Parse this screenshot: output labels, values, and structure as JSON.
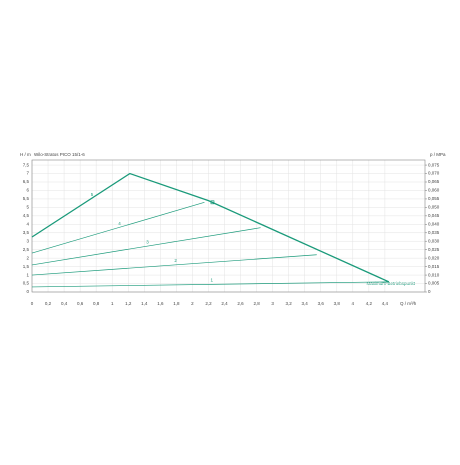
{
  "chart_data": {
    "type": "line",
    "title": "Wilo-Stratos PICO 15/1-6",
    "y_label": "H / m",
    "y2_label": "p / MPa",
    "x_label": "Q / m³/h",
    "legend_note": "Maximum-Betriebspunkt",
    "xlim": [
      0,
      4.9
    ],
    "ylim": [
      0,
      7.8
    ],
    "y2lim": [
      0,
      0.078
    ],
    "grid": true,
    "xticks": [
      0,
      {
        "value": 0.2,
        "label": "0,2"
      },
      {
        "value": 0.4,
        "label": "0,4"
      },
      {
        "value": 0.6,
        "label": "0,6"
      },
      {
        "value": 0.8,
        "label": "0,8"
      },
      1,
      {
        "value": 1.2,
        "label": "1,2"
      },
      {
        "value": 1.4,
        "label": "1,4"
      },
      {
        "value": 1.6,
        "label": "1,6"
      },
      {
        "value": 1.8,
        "label": "1,8"
      },
      2,
      {
        "value": 2.2,
        "label": "2,2"
      },
      {
        "value": 2.4,
        "label": "2,4"
      },
      {
        "value": 2.6,
        "label": "2,6"
      },
      {
        "value": 2.8,
        "label": "2,8"
      },
      3,
      {
        "value": 3.2,
        "label": "3,2"
      },
      {
        "value": 3.4,
        "label": "3,4"
      },
      {
        "value": 3.6,
        "label": "3,6"
      },
      {
        "value": 3.8,
        "label": "3,8"
      },
      4,
      {
        "value": 4.2,
        "label": "4,2"
      },
      {
        "value": 4.4,
        "label": "4,4"
      }
    ],
    "yticks": [
      0,
      {
        "value": 0.5,
        "label": "0,5"
      },
      1,
      {
        "value": 1.5,
        "label": "1,5"
      },
      2,
      {
        "value": 2.5,
        "label": "2,5"
      },
      3,
      {
        "value": 3.5,
        "label": "3,5"
      },
      4,
      {
        "value": 4.5,
        "label": "4,5"
      },
      5,
      {
        "value": 5.5,
        "label": "5,5"
      },
      6,
      {
        "value": 6.5,
        "label": "6,5"
      },
      7,
      {
        "value": 7.5,
        "label": "7,5"
      }
    ],
    "y2ticks": [
      0,
      {
        "value": 0.005,
        "label": "0,005"
      },
      {
        "value": 0.01,
        "label": "0,010"
      },
      {
        "value": 0.015,
        "label": "0,015"
      },
      {
        "value": 0.02,
        "label": "0,020"
      },
      {
        "value": 0.025,
        "label": "0,025"
      },
      {
        "value": 0.03,
        "label": "0,030"
      },
      {
        "value": 0.035,
        "label": "0,035"
      },
      {
        "value": 0.04,
        "label": "0,040"
      },
      {
        "value": 0.045,
        "label": "0,045"
      },
      {
        "value": 0.05,
        "label": "0,050"
      },
      {
        "value": 0.055,
        "label": "0,055"
      },
      {
        "value": 0.06,
        "label": "0,060"
      },
      {
        "value": 0.065,
        "label": "0,065"
      },
      {
        "value": 0.07,
        "label": "0,070"
      },
      {
        "value": 0.075,
        "label": "0,075"
      }
    ],
    "series": [
      {
        "name": "5",
        "color": "#1a9a7a",
        "x": [
          0,
          1.22,
          2.2,
          4.45
        ],
        "values": [
          3.25,
          7.0,
          5.4,
          0.6
        ]
      },
      {
        "name": "4",
        "color": "#1a9a7a",
        "x": [
          0,
          2.15
        ],
        "values": [
          2.3,
          5.3
        ]
      },
      {
        "name": "3",
        "color": "#1a9a7a",
        "x": [
          0,
          2.85
        ],
        "values": [
          1.6,
          3.8
        ]
      },
      {
        "name": "2",
        "color": "#1a9a7a",
        "x": [
          0,
          3.55
        ],
        "values": [
          1.0,
          2.2
        ]
      },
      {
        "name": "1",
        "color": "#1a9a7a",
        "x": [
          0,
          4.45
        ],
        "values": [
          0.3,
          0.6
        ]
      }
    ],
    "operating_point": {
      "x": 2.25,
      "y": 5.3
    }
  }
}
